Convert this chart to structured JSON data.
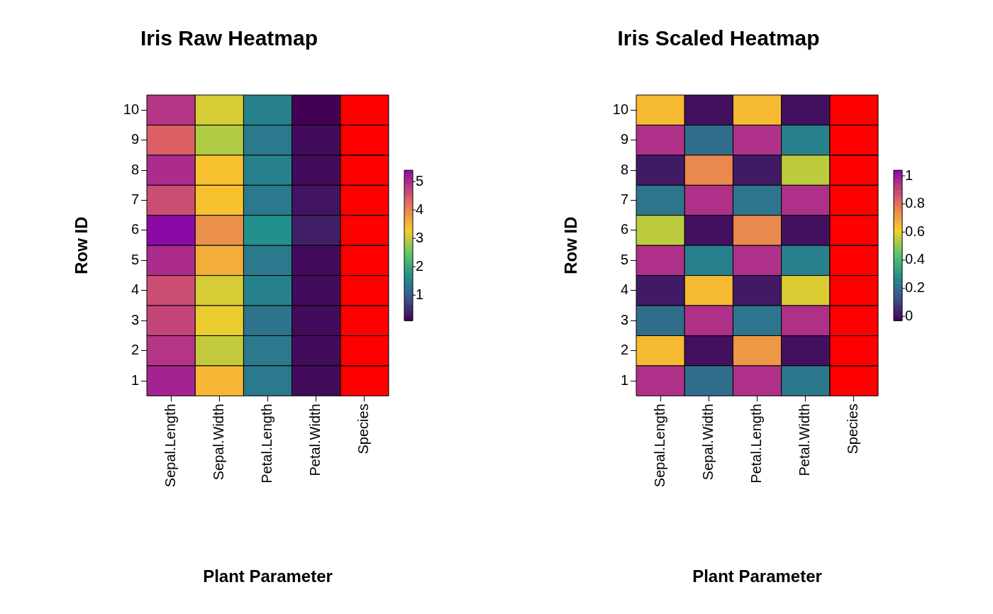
{
  "chart_data": [
    {
      "type": "heatmap",
      "title": "Iris Raw Heatmap",
      "xlabel": "Plant Parameter",
      "ylabel": "Row ID",
      "categories": [
        "Sepal.Length",
        "Sepal.Width",
        "Petal.Length",
        "Petal.Width",
        "Species"
      ],
      "y_categories": [
        "10",
        "9",
        "8",
        "7",
        "6",
        "5",
        "4",
        "3",
        "2",
        "1"
      ],
      "cells": [
        [
          4.9,
          3.1,
          1.5,
          0.1,
          null
        ],
        [
          4.4,
          2.9,
          1.4,
          0.2,
          null
        ],
        [
          5.0,
          3.4,
          1.5,
          0.2,
          null
        ],
        [
          4.6,
          3.4,
          1.4,
          0.3,
          null
        ],
        [
          5.4,
          3.9,
          1.7,
          0.4,
          null
        ],
        [
          5.0,
          3.6,
          1.4,
          0.2,
          null
        ],
        [
          4.6,
          3.1,
          1.5,
          0.2,
          null
        ],
        [
          4.7,
          3.2,
          1.3,
          0.2,
          null
        ],
        [
          4.9,
          3.0,
          1.4,
          0.2,
          null
        ],
        [
          5.1,
          3.5,
          1.4,
          0.2,
          null
        ]
      ],
      "clim": [
        0.1,
        5.4
      ],
      "cticks": [
        1,
        2,
        3,
        4,
        5
      ],
      "bands": [
        {
          "axis": "x",
          "from": "Species",
          "to": "Species",
          "color": "#ff0000"
        }
      ]
    },
    {
      "type": "heatmap",
      "title": "Iris Scaled Heatmap",
      "xlabel": "Plant Parameter",
      "ylabel": "Row ID",
      "categories": [
        "Sepal.Length",
        "Sepal.Width",
        "Petal.Length",
        "Petal.Width",
        "Species"
      ],
      "y_categories": [
        "10",
        "9",
        "8",
        "7",
        "6",
        "5",
        "4",
        "3",
        "2",
        "1"
      ],
      "cells": [
        [
          0.65,
          0.0,
          0.65,
          0.0,
          null
        ],
        [
          0.95,
          0.2,
          0.95,
          0.25,
          null
        ],
        [
          0.02,
          0.75,
          0.02,
          0.55,
          null
        ],
        [
          0.22,
          0.95,
          0.22,
          0.95,
          null
        ],
        [
          0.55,
          0.0,
          0.75,
          0.0,
          null
        ],
        [
          0.95,
          0.25,
          0.95,
          0.25,
          null
        ],
        [
          0.02,
          0.65,
          0.02,
          0.58,
          null
        ],
        [
          0.2,
          0.95,
          0.22,
          0.95,
          null
        ],
        [
          0.65,
          0.0,
          0.72,
          0.0,
          null
        ],
        [
          0.95,
          0.2,
          0.95,
          0.23,
          null
        ]
      ],
      "clim": [
        -0.03,
        1.04
      ],
      "cticks": [
        0,
        0.2,
        0.4,
        0.6,
        0.8,
        1
      ],
      "bands": [
        {
          "axis": "x",
          "from": "Species",
          "to": "Species",
          "color": "#ff0000"
        }
      ]
    }
  ]
}
